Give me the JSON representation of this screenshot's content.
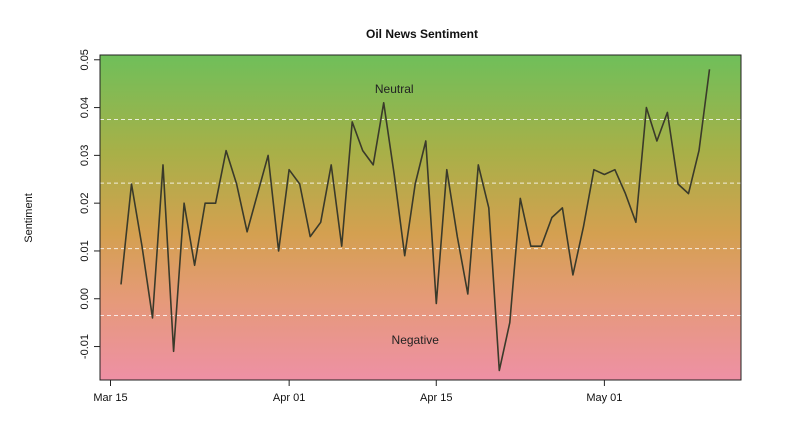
{
  "chart_data": {
    "type": "line",
    "title": "Oil News Sentiment",
    "xlabel": "",
    "ylabel": "Sentiment",
    "x": [
      "2015-03-16",
      "2015-03-17",
      "2015-03-18",
      "2015-03-19",
      "2015-03-20",
      "2015-03-21",
      "2015-03-22",
      "2015-03-23",
      "2015-03-24",
      "2015-03-25",
      "2015-03-26",
      "2015-03-27",
      "2015-03-28",
      "2015-03-29",
      "2015-03-30",
      "2015-03-31",
      "2015-04-01",
      "2015-04-02",
      "2015-04-03",
      "2015-04-04",
      "2015-04-05",
      "2015-04-06",
      "2015-04-07",
      "2015-04-08",
      "2015-04-09",
      "2015-04-10",
      "2015-04-11",
      "2015-04-12",
      "2015-04-13",
      "2015-04-14",
      "2015-04-15",
      "2015-04-16",
      "2015-04-17",
      "2015-04-18",
      "2015-04-19",
      "2015-04-20",
      "2015-04-21",
      "2015-04-22",
      "2015-04-23",
      "2015-04-24",
      "2015-04-25",
      "2015-04-26",
      "2015-04-27",
      "2015-04-28",
      "2015-04-29",
      "2015-04-30",
      "2015-05-01",
      "2015-05-02",
      "2015-05-03",
      "2015-05-04",
      "2015-05-05",
      "2015-05-06",
      "2015-05-07",
      "2015-05-08",
      "2015-05-09",
      "2015-05-10"
    ],
    "series": [
      {
        "name": "",
        "values": [
          0.003,
          0.024,
          0.011,
          -0.004,
          0.028,
          -0.011,
          0.02,
          0.007,
          0.02,
          0.02,
          0.031,
          0.024,
          0.014,
          0.022,
          0.03,
          0.01,
          0.027,
          0.024,
          0.013,
          0.016,
          0.028,
          0.011,
          0.037,
          0.031,
          0.028,
          0.041,
          0.026,
          0.009,
          0.024,
          0.033,
          -0.001,
          0.027,
          0.013,
          0.001,
          0.028,
          0.019,
          -0.015,
          -0.005,
          0.021,
          0.011,
          0.011,
          0.017,
          0.019,
          0.005,
          0.015,
          0.027,
          0.026,
          0.027,
          0.022,
          0.016,
          0.04,
          0.033,
          0.039,
          0.024,
          0.022,
          0.031
        ]
      }
    ],
    "final_point": {
      "x": "2015-05-11",
      "y": 0.048
    },
    "x_ticks": [
      {
        "date": "2015-03-15",
        "label": "Mar 15"
      },
      {
        "date": "2015-04-01",
        "label": "Apr 01"
      },
      {
        "date": "2015-04-15",
        "label": "Apr 15"
      },
      {
        "date": "2015-05-01",
        "label": "May 01"
      }
    ],
    "y_ticks": [
      -0.01,
      0.0,
      0.01,
      0.02,
      0.03,
      0.04,
      0.05
    ],
    "y_tick_labels": [
      "-0.01",
      "0.00",
      "0.01",
      "0.02",
      "0.03",
      "0.04",
      "0.05"
    ],
    "xlim": [
      "2015-03-14",
      "2015-05-14"
    ],
    "ylim": [
      -0.017,
      0.051
    ],
    "reference_lines": [
      -0.0035,
      0.0105,
      0.0242,
      0.0375
    ],
    "annotations": [
      {
        "text": "Neutral",
        "x": "2015-04-11",
        "y": 0.043
      },
      {
        "text": "Negative",
        "x": "2015-04-13",
        "y": -0.0095
      }
    ],
    "background_gradient": [
      "#6fbf5a",
      "#a8b048",
      "#d4a050",
      "#e59a78",
      "#ee90a5"
    ],
    "line_color": "#3a3a2a",
    "grid": false,
    "legend": "none"
  }
}
